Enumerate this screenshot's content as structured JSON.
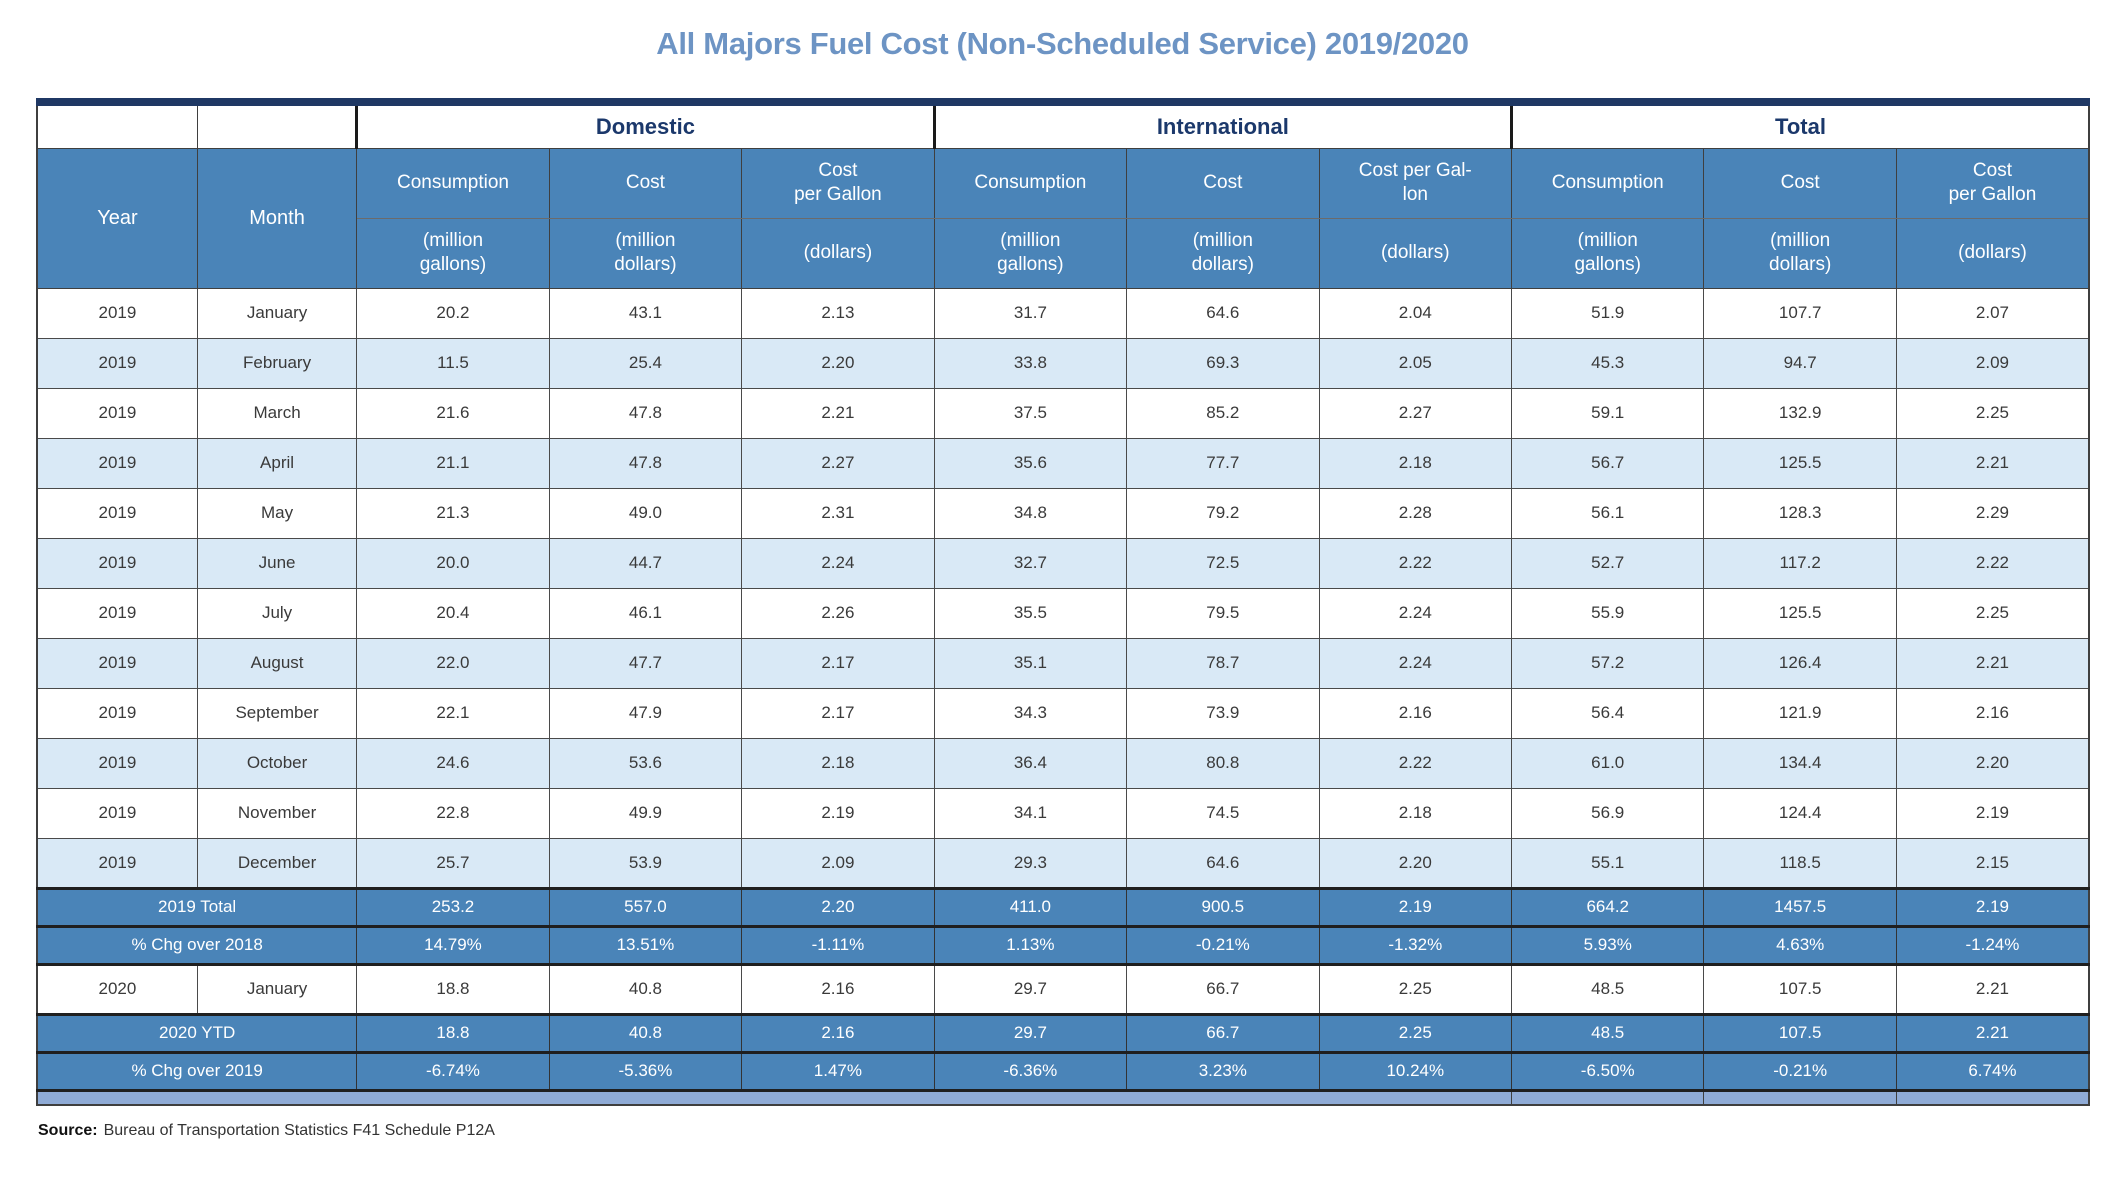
{
  "title": "All Majors Fuel Cost (Non-Scheduled Service) 2019/2020",
  "colors": {
    "header_blue": "#4a84b8",
    "shaded_row_blue": "#d9e9f6",
    "bottom_bar_blue": "#8fabd6",
    "navy": "#1f3864",
    "title_blue": "#6d94c4"
  },
  "table": {
    "groups": [
      {
        "label": "Domestic"
      },
      {
        "label": "International"
      },
      {
        "label": "Total"
      }
    ],
    "base_headers": {
      "year": "Year",
      "month": "Month"
    },
    "sub_headers": [
      {
        "label": "Consumption",
        "unit": "(million\ngallons)"
      },
      {
        "label": "Cost",
        "unit": "(million\ndollars)"
      },
      {
        "label": "Cost\nper Gallon",
        "unit": "(dollars)"
      },
      {
        "label": "Consumption",
        "unit": "(million\ngallons)"
      },
      {
        "label": "Cost",
        "unit": "(million\ndollars)"
      },
      {
        "label": "Cost per Gal-\nlon",
        "unit": "(dollars)"
      },
      {
        "label": "Consumption",
        "unit": "(million\ngallons)"
      },
      {
        "label": "Cost",
        "unit": "(million\ndollars)"
      },
      {
        "label": "Cost\nper Gallon",
        "unit": "(dollars)"
      }
    ],
    "rows": [
      {
        "type": "month",
        "shaded": false,
        "year": "2019",
        "month": "January",
        "values": [
          "20.2",
          "43.1",
          "2.13",
          "31.7",
          "64.6",
          "2.04",
          "51.9",
          "107.7",
          "2.07"
        ]
      },
      {
        "type": "month",
        "shaded": true,
        "year": "2019",
        "month": "February",
        "values": [
          "11.5",
          "25.4",
          "2.20",
          "33.8",
          "69.3",
          "2.05",
          "45.3",
          "94.7",
          "2.09"
        ]
      },
      {
        "type": "month",
        "shaded": false,
        "year": "2019",
        "month": "March",
        "values": [
          "21.6",
          "47.8",
          "2.21",
          "37.5",
          "85.2",
          "2.27",
          "59.1",
          "132.9",
          "2.25"
        ]
      },
      {
        "type": "month",
        "shaded": true,
        "year": "2019",
        "month": "April",
        "values": [
          "21.1",
          "47.8",
          "2.27",
          "35.6",
          "77.7",
          "2.18",
          "56.7",
          "125.5",
          "2.21"
        ]
      },
      {
        "type": "month",
        "shaded": false,
        "year": "2019",
        "month": "May",
        "values": [
          "21.3",
          "49.0",
          "2.31",
          "34.8",
          "79.2",
          "2.28",
          "56.1",
          "128.3",
          "2.29"
        ]
      },
      {
        "type": "month",
        "shaded": true,
        "year": "2019",
        "month": "June",
        "values": [
          "20.0",
          "44.7",
          "2.24",
          "32.7",
          "72.5",
          "2.22",
          "52.7",
          "117.2",
          "2.22"
        ]
      },
      {
        "type": "month",
        "shaded": false,
        "year": "2019",
        "month": "July",
        "values": [
          "20.4",
          "46.1",
          "2.26",
          "35.5",
          "79.5",
          "2.24",
          "55.9",
          "125.5",
          "2.25"
        ]
      },
      {
        "type": "month",
        "shaded": true,
        "year": "2019",
        "month": "August",
        "values": [
          "22.0",
          "47.7",
          "2.17",
          "35.1",
          "78.7",
          "2.24",
          "57.2",
          "126.4",
          "2.21"
        ]
      },
      {
        "type": "month",
        "shaded": false,
        "year": "2019",
        "month": "September",
        "values": [
          "22.1",
          "47.9",
          "2.17",
          "34.3",
          "73.9",
          "2.16",
          "56.4",
          "121.9",
          "2.16"
        ]
      },
      {
        "type": "month",
        "shaded": true,
        "year": "2019",
        "month": "October",
        "values": [
          "24.6",
          "53.6",
          "2.18",
          "36.4",
          "80.8",
          "2.22",
          "61.0",
          "134.4",
          "2.20"
        ]
      },
      {
        "type": "month",
        "shaded": false,
        "year": "2019",
        "month": "November",
        "values": [
          "22.8",
          "49.9",
          "2.19",
          "34.1",
          "74.5",
          "2.18",
          "56.9",
          "124.4",
          "2.19"
        ]
      },
      {
        "type": "month",
        "shaded": true,
        "year": "2019",
        "month": "December",
        "values": [
          "25.7",
          "53.9",
          "2.09",
          "29.3",
          "64.6",
          "2.20",
          "55.1",
          "118.5",
          "2.15"
        ]
      },
      {
        "type": "summary",
        "label": "2019 Total",
        "values": [
          "253.2",
          "557.0",
          "2.20",
          "411.0",
          "900.5",
          "2.19",
          "664.2",
          "1457.5",
          "2.19"
        ]
      },
      {
        "type": "summary",
        "label": "% Chg over 2018",
        "values": [
          "14.79%",
          "13.51%",
          "-1.11%",
          "1.13%",
          "-0.21%",
          "-1.32%",
          "5.93%",
          "4.63%",
          "-1.24%"
        ]
      },
      {
        "type": "month",
        "shaded": false,
        "year": "2020",
        "month": "January",
        "values": [
          "18.8",
          "40.8",
          "2.16",
          "29.7",
          "66.7",
          "2.25",
          "48.5",
          "107.5",
          "2.21"
        ]
      },
      {
        "type": "summary",
        "label": "2020 YTD",
        "values": [
          "18.8",
          "40.8",
          "2.16",
          "29.7",
          "66.7",
          "2.25",
          "48.5",
          "107.5",
          "2.21"
        ]
      },
      {
        "type": "summary",
        "label": "% Chg over 2019",
        "values": [
          "-6.74%",
          "-5.36%",
          "1.47%",
          "-6.36%",
          "3.23%",
          "10.24%",
          "-6.50%",
          "-0.21%",
          "6.74%"
        ]
      },
      {
        "type": "footer"
      }
    ]
  },
  "source": {
    "label": "Source:",
    "text": "Bureau of Transportation Statistics F41 Schedule P12A"
  }
}
